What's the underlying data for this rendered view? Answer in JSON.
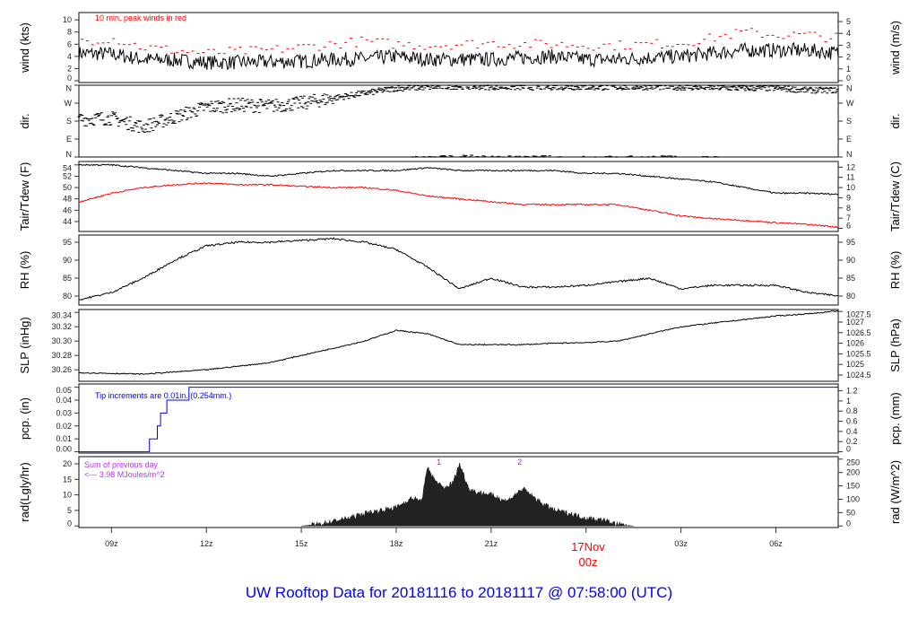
{
  "chart_data": {
    "type": "line",
    "title": "UW Rooftop Data for 20181116  to  20181117 @ 07:58:00  (UTC)",
    "xrange_hours": [
      7.97,
      31.97
    ],
    "xticks": [
      {
        "h": 9,
        "label": "09z"
      },
      {
        "h": 12,
        "label": "12z"
      },
      {
        "h": 15,
        "label": "15z"
      },
      {
        "h": 18,
        "label": "18z"
      },
      {
        "h": 21,
        "label": "21z"
      },
      {
        "h": 27,
        "label": "03z"
      },
      {
        "h": 30,
        "label": "06z"
      }
    ],
    "day_marker": {
      "h": 24,
      "date": "17Nov",
      "label": "00z",
      "color": "#ff0000"
    },
    "panels": [
      {
        "id": "wind",
        "ylabel": "wind (kts)",
        "ylabel_right": "wind (m/s)",
        "ylim": [
          -0.3,
          11.2
        ],
        "yticks": [
          0,
          2,
          4,
          6,
          8,
          10
        ],
        "yticks_right": [
          {
            "v": 0,
            "l": "0"
          },
          {
            "v": 1.944,
            "l": "1"
          },
          {
            "v": 3.888,
            "l": "2"
          },
          {
            "v": 5.832,
            "l": "3"
          },
          {
            "v": 7.776,
            "l": "4"
          },
          {
            "v": 9.72,
            "l": "5"
          }
        ],
        "annotation": "10 min. peak winds in red",
        "annotation_color": "#ff0000",
        "hours": [
          8,
          9,
          10,
          11,
          12,
          13,
          14,
          15,
          16,
          17,
          18,
          19,
          20,
          21,
          22,
          23,
          24,
          25,
          26,
          27,
          28,
          29,
          30,
          31,
          32
        ],
        "mean": [
          4.5,
          4.4,
          3.5,
          3.4,
          3.0,
          3.0,
          3.1,
          3.2,
          3.5,
          3.6,
          4.0,
          3.5,
          3.5,
          3.5,
          3.8,
          4.0,
          3.5,
          3.5,
          3.8,
          4.0,
          4.5,
          5.0,
          5.0,
          5.0,
          4.5
        ],
        "peak": [
          6.5,
          7.0,
          5.5,
          5.0,
          4.5,
          4.8,
          5.0,
          5.5,
          6.0,
          6.5,
          6.0,
          5.8,
          6.0,
          6.2,
          6.0,
          6.0,
          5.8,
          5.8,
          6.0,
          6.2,
          7.0,
          8.0,
          7.5,
          7.5,
          7.0
        ]
      },
      {
        "id": "dir",
        "ylabel": "dir.",
        "ylabel_right": "dir.",
        "ylim": [
          0,
          360
        ],
        "yticks_labeled": [
          {
            "v": 0,
            "l": "N"
          },
          {
            "v": 90,
            "l": "E"
          },
          {
            "v": 180,
            "l": "S"
          },
          {
            "v": 270,
            "l": "W"
          },
          {
            "v": 360,
            "l": "N"
          }
        ],
        "hours": [
          8,
          9,
          10,
          11,
          12,
          13,
          14,
          15,
          16,
          17,
          18,
          19,
          20,
          21,
          22,
          23,
          24,
          25,
          26,
          27,
          28,
          29,
          30,
          31,
          32
        ],
        "deg": [
          190,
          195,
          150,
          200,
          250,
          262,
          255,
          270,
          295,
          320,
          345,
          350,
          355,
          352,
          350,
          352,
          350,
          350,
          352,
          350,
          348,
          345,
          345,
          335,
          335
        ]
      },
      {
        "id": "temp",
        "ylabel": "Tair/Tdew (F)",
        "ylabel_right": "Tair/Tdew (C)",
        "ylim": [
          42.25,
          54.6
        ],
        "yticks": [
          44,
          46,
          48,
          50,
          52,
          54
        ],
        "yticks_right": [
          {
            "v": 42.8,
            "l": "6"
          },
          {
            "v": 44.6,
            "l": "7"
          },
          {
            "v": 46.4,
            "l": "8"
          },
          {
            "v": 48.2,
            "l": "9"
          },
          {
            "v": 50,
            "l": "10"
          },
          {
            "v": 51.8,
            "l": "11"
          },
          {
            "v": 53.6,
            "l": "12"
          }
        ],
        "hours": [
          8,
          9,
          10,
          11,
          12,
          13,
          14,
          15,
          16,
          17,
          18,
          19,
          20,
          21,
          22,
          23,
          24,
          25,
          26,
          27,
          28,
          29,
          30,
          31,
          32
        ],
        "series": [
          {
            "name": "Tair",
            "color": "#000000",
            "values": [
              54,
              54,
              53.5,
              53,
              52.5,
              52.5,
              52,
              52.5,
              53,
              53,
              53,
              53.5,
              53,
              53,
              53,
              53,
              52.5,
              52.5,
              52,
              51.5,
              51,
              50,
              49,
              49,
              48.8
            ]
          },
          {
            "name": "Tdew",
            "color": "#ff0000",
            "values": [
              47.5,
              49,
              50,
              50.5,
              50.8,
              50.5,
              50.5,
              50.2,
              50,
              50,
              49.5,
              48.5,
              48,
              47.5,
              47,
              47,
              47,
              47,
              46,
              45,
              44.5,
              44.2,
              43.8,
              43.5,
              43
            ]
          }
        ]
      },
      {
        "id": "rh",
        "ylabel": "RH (%)",
        "ylabel_right": "RH (%)",
        "ylim": [
          77.5,
          97
        ],
        "yticks": [
          80,
          85,
          90,
          95
        ],
        "yticks_right": [
          {
            "v": 80,
            "l": "80"
          },
          {
            "v": 85,
            "l": "85"
          },
          {
            "v": 90,
            "l": "90"
          },
          {
            "v": 95,
            "l": "95"
          }
        ],
        "hours": [
          8,
          9,
          10,
          11,
          12,
          13,
          14,
          15,
          16,
          17,
          18,
          19,
          20,
          21,
          22,
          23,
          24,
          25,
          26,
          27,
          28,
          29,
          30,
          31,
          32
        ],
        "values": [
          79,
          81,
          85,
          90,
          94,
          95,
          95,
          95.5,
          96,
          95,
          93,
          88,
          82,
          85,
          82.5,
          82.5,
          83,
          84,
          85,
          82,
          83,
          83,
          83,
          81,
          80
        ]
      },
      {
        "id": "slp",
        "ylabel": "SLP (inHg)",
        "ylabel_right": "SLP (hPa)",
        "ylim": [
          30.244,
          30.344
        ],
        "yticks": [
          30.26,
          30.28,
          30.3,
          30.32,
          30.34
        ],
        "yticks_right": [
          {
            "v": 30.2527,
            "l": "1024.5"
          },
          {
            "v": 30.2675,
            "l": "1025"
          },
          {
            "v": 30.2822,
            "l": "1025.5"
          },
          {
            "v": 30.297,
            "l": "1026"
          },
          {
            "v": 30.3118,
            "l": "1026.5"
          },
          {
            "v": 30.3265,
            "l": "1027"
          },
          {
            "v": 30.3413,
            "l": "1027.5"
          }
        ],
        "hours": [
          8,
          9,
          10,
          11,
          12,
          13,
          14,
          15,
          16,
          17,
          18,
          19,
          20,
          21,
          22,
          23,
          24,
          25,
          26,
          27,
          28,
          29,
          30,
          31,
          32
        ],
        "values": [
          30.256,
          30.255,
          30.254,
          30.257,
          30.26,
          30.265,
          30.27,
          30.28,
          30.29,
          30.3,
          30.315,
          30.31,
          30.295,
          30.295,
          30.295,
          30.297,
          30.298,
          30.3,
          30.31,
          30.32,
          30.325,
          30.33,
          30.335,
          30.338,
          30.342
        ]
      },
      {
        "id": "pcp",
        "ylabel": "pcp. (in)",
        "ylabel_right": "pcp. (mm)",
        "ylim": [
          -0.001,
          0.0525
        ],
        "yticks": [
          0,
          0.01,
          0.02,
          0.03,
          0.04,
          0.05
        ],
        "color": "#0000ff",
        "yticks_right": [
          {
            "v": 0,
            "l": "0"
          },
          {
            "v": 0.00787,
            "l": "0.2"
          },
          {
            "v": 0.01575,
            "l": "0.4"
          },
          {
            "v": 0.02362,
            "l": "0.6"
          },
          {
            "v": 0.0315,
            "l": "0.8"
          },
          {
            "v": 0.03937,
            "l": "1"
          },
          {
            "v": 0.04724,
            "l": "1.2"
          }
        ],
        "annotation": "Tip increments are 0.01in. (0.254mm.)",
        "annotation_color": "#0000ff",
        "steps": [
          {
            "h": 7.97,
            "v": 0
          },
          {
            "h": 10.2,
            "v": 0.01
          },
          {
            "h": 10.45,
            "v": 0.02
          },
          {
            "h": 10.55,
            "v": 0.03
          },
          {
            "h": 10.75,
            "v": 0.04
          },
          {
            "h": 11.45,
            "v": 0.05
          }
        ]
      },
      {
        "id": "rad",
        "ylabel": "rad(Lgly/hr)",
        "ylabel_right": "rad (W/m^2)",
        "ylim": [
          -0.5,
          22.3
        ],
        "yticks": [
          0,
          5,
          10,
          15,
          20
        ],
        "yticks_right": [
          {
            "v": 0,
            "l": "0"
          },
          {
            "v": 4.3,
            "l": "50"
          },
          {
            "v": 8.6,
            "l": "100"
          },
          {
            "v": 12.9,
            "l": "150"
          },
          {
            "v": 17.2,
            "l": "200"
          },
          {
            "v": 21.5,
            "l": "250"
          }
        ],
        "annotation_lines": [
          "Sum of previous day",
          "<--- 3.98 MJoules/m^2"
        ],
        "annotation_color": "#bb33ff",
        "markers": [
          {
            "h": 19.35,
            "label": "1"
          },
          {
            "h": 21.9,
            "label": "2"
          }
        ],
        "hours": [
          15,
          15.5,
          16,
          16.5,
          17,
          17.5,
          18,
          18.5,
          18.8,
          19,
          19.2,
          19.5,
          19.8,
          20,
          20.3,
          20.5,
          21,
          21.5,
          22,
          22.5,
          23,
          23.5,
          24,
          24.5,
          25,
          25.5
        ],
        "values": [
          0,
          0.5,
          1.5,
          2.5,
          4,
          5,
          6,
          9,
          8,
          19,
          15,
          12,
          14,
          20,
          12,
          11,
          10,
          8,
          12,
          8,
          5,
          4,
          2.5,
          2,
          0.5,
          0
        ]
      }
    ]
  }
}
